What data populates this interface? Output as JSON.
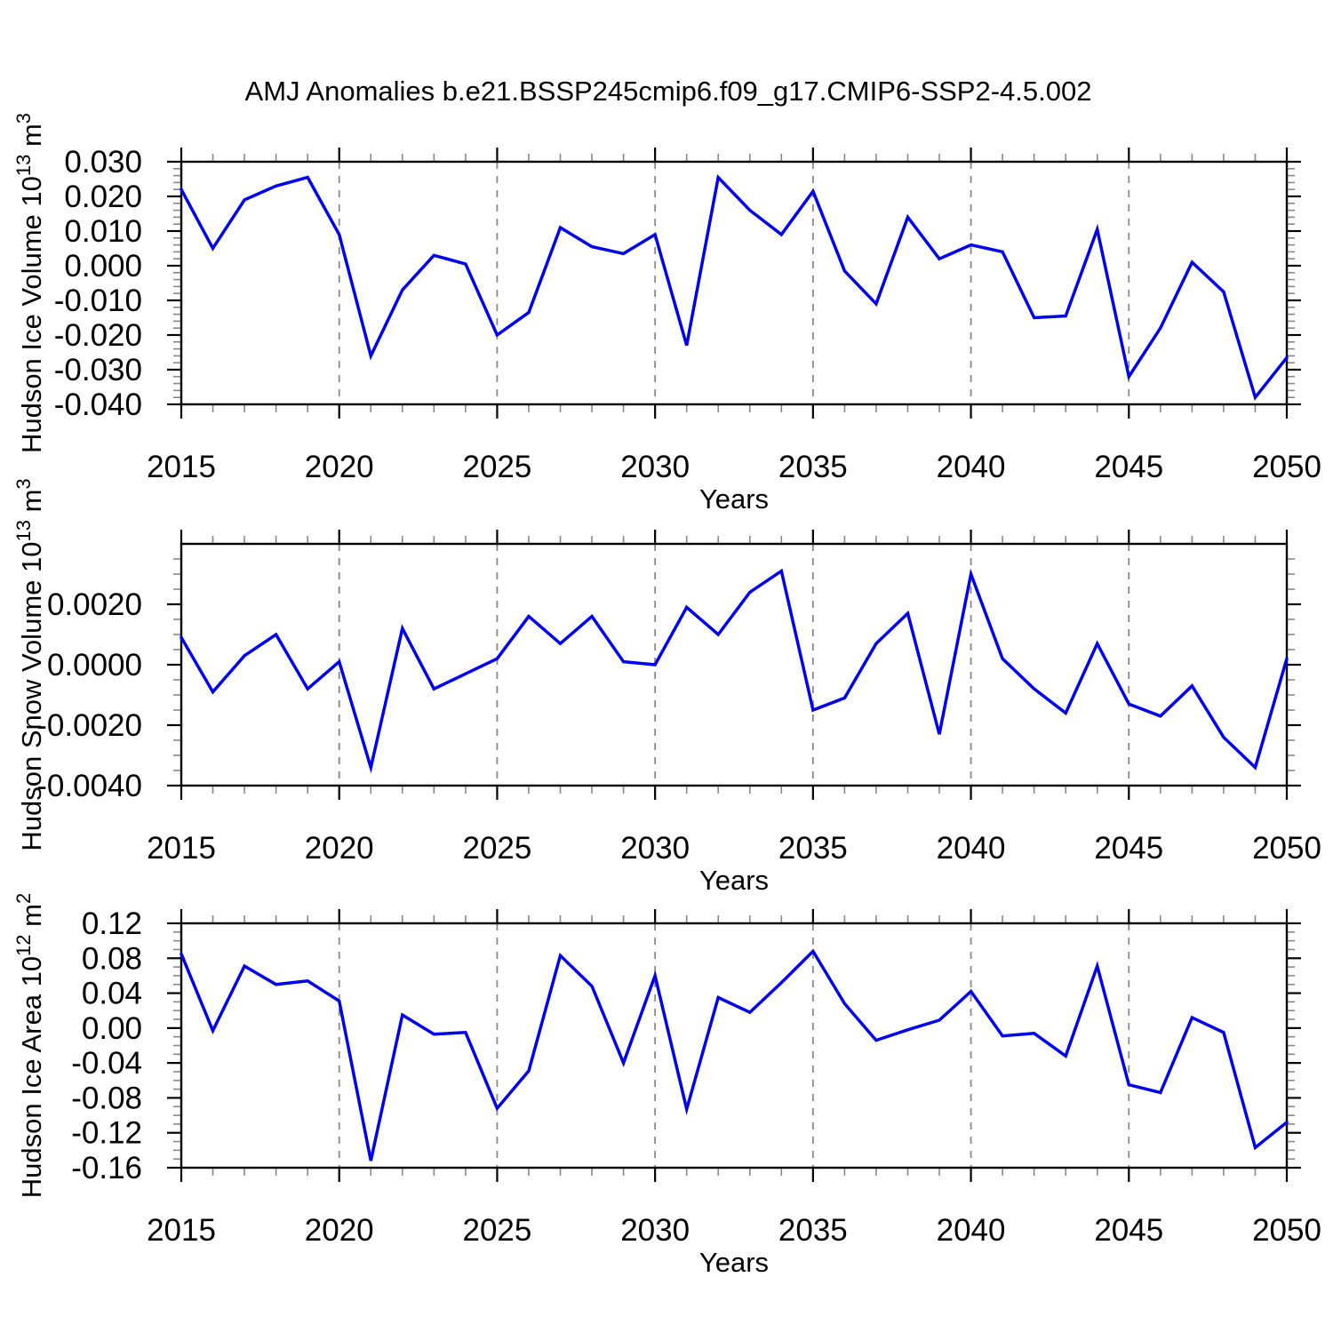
{
  "title": "AMJ Anomalies b.e21.BSSP245cmip6.f09_g17.CMIP6-SSP2-4.5.002",
  "years": [
    2015,
    2016,
    2017,
    2018,
    2019,
    2020,
    2021,
    2022,
    2023,
    2024,
    2025,
    2026,
    2027,
    2028,
    2029,
    2030,
    2031,
    2032,
    2033,
    2034,
    2035,
    2036,
    2037,
    2038,
    2039,
    2040,
    2041,
    2042,
    2043,
    2044,
    2045,
    2046,
    2047,
    2048,
    2049,
    2050
  ],
  "grid_years": [
    2020,
    2025,
    2030,
    2035,
    2040,
    2045
  ],
  "colors": {
    "line": "#0000F0",
    "frame": "#000000",
    "grid": "#8A8A8A",
    "minor_tick": "#888888",
    "background": "#FFFFFF"
  },
  "chart_data": [
    {
      "type": "line",
      "id": "ice-volume",
      "title": "AMJ Anomalies b.e21.BSSP245cmip6.f09_g17.CMIP6-SSP2-4.5.002",
      "xlabel": "Years",
      "ylabel": {
        "segments": [
          {
            "t": "Hudson Ice Volume 10",
            "sup": false
          },
          {
            "t": "13",
            "sup": true
          },
          {
            "t": " m",
            "sup": false
          },
          {
            "t": "3",
            "sup": true
          }
        ]
      },
      "ylim": [
        -0.04,
        0.03
      ],
      "yticks": [
        0.03,
        0.02,
        0.01,
        0.0,
        -0.01,
        -0.02,
        -0.03,
        -0.04
      ],
      "ytick_labels": [
        "0.030",
        "0.020",
        "0.010",
        "0.000",
        "-0.010",
        "-0.020",
        "-0.030",
        "-0.040"
      ],
      "yminor_step": 0.002,
      "xtick_labels": [
        "2015",
        "2020",
        "2025",
        "2030",
        "2035",
        "2040",
        "2045",
        "2050"
      ],
      "x": [
        2015,
        2016,
        2017,
        2018,
        2019,
        2020,
        2021,
        2022,
        2023,
        2024,
        2025,
        2026,
        2027,
        2028,
        2029,
        2030,
        2031,
        2032,
        2033,
        2034,
        2035,
        2036,
        2037,
        2038,
        2039,
        2040,
        2041,
        2042,
        2043,
        2044,
        2045,
        2046,
        2047,
        2048,
        2049,
        2050
      ],
      "values": [
        0.022,
        0.005,
        0.019,
        0.023,
        0.0255,
        0.009,
        -0.026,
        -0.007,
        0.003,
        0.0005,
        -0.02,
        -0.0135,
        0.011,
        0.0055,
        0.0035,
        0.009,
        -0.023,
        0.0255,
        0.016,
        0.009,
        0.0215,
        -0.0015,
        -0.011,
        0.014,
        0.002,
        0.006,
        0.004,
        -0.015,
        -0.0145,
        0.0105,
        -0.032,
        -0.018,
        0.001,
        -0.0075,
        -0.038,
        -0.0265
      ]
    },
    {
      "type": "line",
      "id": "snow-volume",
      "xlabel": "Years",
      "ylabel": {
        "segments": [
          {
            "t": "Hudson Snow Volume 10",
            "sup": false
          },
          {
            "t": "13",
            "sup": true
          },
          {
            "t": " m",
            "sup": false
          },
          {
            "t": "3",
            "sup": true
          }
        ]
      },
      "ylim": [
        -0.004,
        0.004
      ],
      "yticks": [
        0.002,
        0.0,
        -0.002,
        -0.004
      ],
      "ytick_labels": [
        "0.0020",
        "0.0000",
        "-0.0020",
        "-0.0040"
      ],
      "yminor_step": 0.0005,
      "xtick_labels": [
        "2015",
        "2020",
        "2025",
        "2030",
        "2035",
        "2040",
        "2045",
        "2050"
      ],
      "x": [
        2015,
        2016,
        2017,
        2018,
        2019,
        2020,
        2021,
        2022,
        2023,
        2024,
        2025,
        2026,
        2027,
        2028,
        2029,
        2030,
        2031,
        2032,
        2033,
        2034,
        2035,
        2036,
        2037,
        2038,
        2039,
        2040,
        2041,
        2042,
        2043,
        2044,
        2045,
        2046,
        2047,
        2048,
        2049,
        2050
      ],
      "values": [
        0.0009,
        -0.0009,
        0.0003,
        0.001,
        -0.0008,
        0.0001,
        -0.0034,
        0.0012,
        -0.0008,
        -0.0003,
        0.0002,
        0.0016,
        0.0007,
        0.0016,
        0.0001,
        0.0,
        0.0019,
        0.001,
        0.0024,
        0.0031,
        -0.0015,
        -0.0011,
        0.0007,
        0.0017,
        -0.0023,
        0.003,
        0.0002,
        -0.0008,
        -0.0016,
        0.0007,
        -0.0013,
        -0.0017,
        -0.0007,
        -0.0024,
        -0.0034,
        0.0002
      ]
    },
    {
      "type": "line",
      "id": "ice-area",
      "xlabel": "Years",
      "ylabel": {
        "segments": [
          {
            "t": "Hudson Ice Area 10",
            "sup": false
          },
          {
            "t": "12",
            "sup": true
          },
          {
            "t": " m",
            "sup": false
          },
          {
            "t": "2",
            "sup": true
          }
        ]
      },
      "ylim": [
        -0.16,
        0.12
      ],
      "yticks": [
        0.12,
        0.08,
        0.04,
        0.0,
        -0.04,
        -0.08,
        -0.12,
        -0.16
      ],
      "ytick_labels": [
        "0.12",
        "0.08",
        "0.04",
        "0.00",
        "-0.04",
        "-0.08",
        "-0.12",
        "-0.16"
      ],
      "yminor_step": 0.01,
      "xtick_labels": [
        "2015",
        "2020",
        "2025",
        "2030",
        "2035",
        "2040",
        "2045",
        "2050"
      ],
      "x": [
        2015,
        2016,
        2017,
        2018,
        2019,
        2020,
        2021,
        2022,
        2023,
        2024,
        2025,
        2026,
        2027,
        2028,
        2029,
        2030,
        2031,
        2032,
        2033,
        2034,
        2035,
        2036,
        2037,
        2038,
        2039,
        2040,
        2041,
        2042,
        2043,
        2044,
        2045,
        2046,
        2047,
        2048,
        2049,
        2050
      ],
      "values": [
        0.085,
        -0.003,
        0.071,
        0.05,
        0.054,
        0.031,
        -0.152,
        0.015,
        -0.007,
        -0.005,
        -0.092,
        -0.049,
        0.083,
        0.048,
        -0.04,
        0.06,
        -0.093,
        0.035,
        0.018,
        0.052,
        0.088,
        0.028,
        -0.014,
        -0.002,
        0.009,
        0.042,
        -0.009,
        -0.006,
        -0.032,
        0.071,
        -0.065,
        -0.074,
        0.012,
        -0.005,
        -0.137,
        -0.108
      ]
    }
  ]
}
